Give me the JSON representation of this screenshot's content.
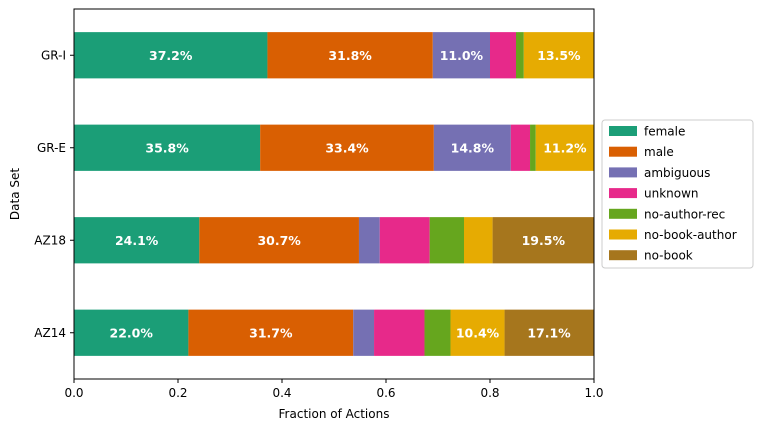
{
  "chart_data": {
    "type": "bar",
    "orientation": "horizontal",
    "stacked": true,
    "xlabel": "Fraction of Actions",
    "ylabel": "Data Set",
    "xlim": [
      0,
      1
    ],
    "xticks": [
      "0.0",
      "0.2",
      "0.4",
      "0.6",
      "0.8",
      "1.0"
    ],
    "categories": [
      "GR-I",
      "GR-E",
      "AZ18",
      "AZ14"
    ],
    "grid": false,
    "legend_position": "right",
    "series": [
      {
        "name": "female",
        "color": "#1b9e77",
        "values": [
          0.372,
          0.358,
          0.241,
          0.22
        ],
        "labels": [
          "37.2%",
          "35.8%",
          "24.1%",
          "22.0%"
        ]
      },
      {
        "name": "male",
        "color": "#d95f02",
        "values": [
          0.318,
          0.334,
          0.307,
          0.317
        ],
        "labels": [
          "31.8%",
          "33.4%",
          "30.7%",
          "31.7%"
        ]
      },
      {
        "name": "ambiguous",
        "color": "#7570b3",
        "values": [
          0.11,
          0.148,
          0.04,
          0.04
        ],
        "labels": [
          "11.0%",
          "14.8%",
          "",
          ""
        ]
      },
      {
        "name": "unknown",
        "color": "#e7298a",
        "values": [
          0.05,
          0.037,
          0.096,
          0.097
        ],
        "labels": [
          "",
          "",
          "",
          ""
        ]
      },
      {
        "name": "no-author-rec",
        "color": "#66a61e",
        "values": [
          0.015,
          0.011,
          0.066,
          0.05
        ],
        "labels": [
          "",
          "",
          "",
          ""
        ]
      },
      {
        "name": "no-book-author",
        "color": "#e6ab02",
        "values": [
          0.135,
          0.112,
          0.055,
          0.104
        ],
        "labels": [
          "13.5%",
          "11.2%",
          "",
          "10.4%"
        ]
      },
      {
        "name": "no-book",
        "color": "#a6761d",
        "values": [
          0.0,
          0.0,
          0.195,
          0.171
        ],
        "labels": [
          "",
          "",
          "19.5%",
          "17.1%"
        ]
      }
    ]
  }
}
